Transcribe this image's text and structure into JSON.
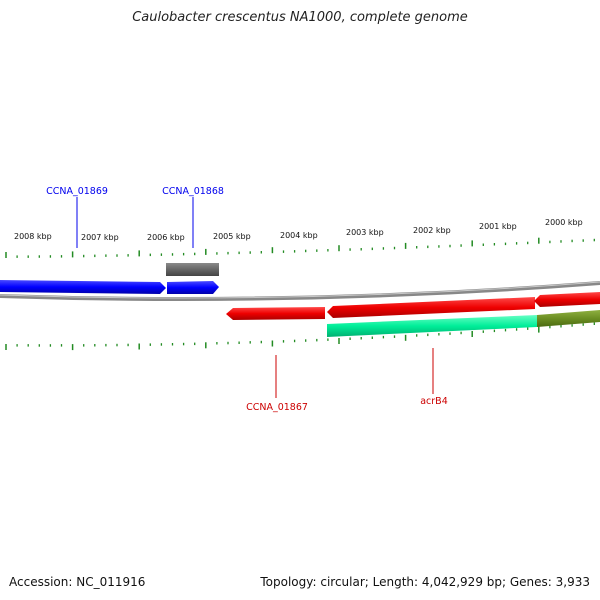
{
  "title": "Caulobacter crescentus NA1000, complete genome",
  "footer": {
    "accession": "Accession: NC_011916",
    "summary": "Topology: circular; Length: 4,042,929 bp; Genes: 3,933"
  },
  "scale_labels": [
    "2008 kbp",
    "2007 kbp",
    "2006 kbp",
    "2005 kbp",
    "2004 kbp",
    "2003 kbp",
    "2002 kbp",
    "2001 kbp",
    "2000 kbp"
  ],
  "genes": [
    {
      "name": "CCNA_01869",
      "color": "#0000ee"
    },
    {
      "name": "CCNA_01868",
      "color": "#0000ee"
    },
    {
      "name": "CCNA_01867",
      "color": "#cc0000"
    },
    {
      "name": "acrB4",
      "color": "#cc0000"
    }
  ],
  "colors": {
    "forward_cds": "#0000ff",
    "reverse_cds": "#ee0000",
    "other_feature": "#666666",
    "cyan_feature": "#00ee99",
    "olive_feature": "#6b8e23",
    "backbone": "#808080",
    "ticks": "#228b22"
  }
}
